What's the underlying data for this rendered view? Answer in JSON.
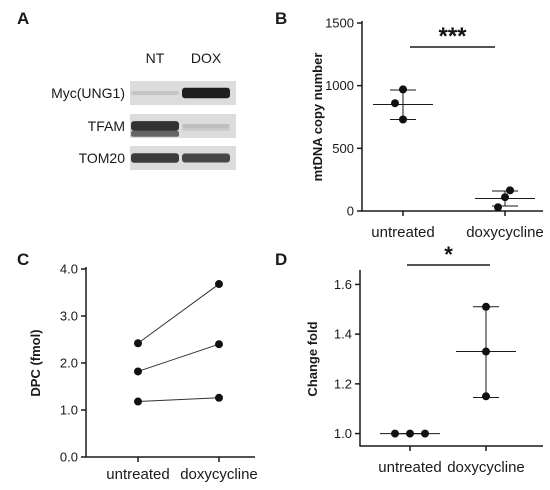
{
  "chart_data": [
    {
      "panel": "A",
      "type": "blot",
      "lanes": [
        "NT",
        "DOX"
      ],
      "bands": [
        {
          "label": "Myc(UNG1)",
          "intensity": [
            0.12,
            0.95
          ]
        },
        {
          "label": "TFAM",
          "intensity": [
            0.85,
            0.15
          ]
        },
        {
          "label": "TOM20",
          "intensity": [
            0.8,
            0.75
          ]
        }
      ]
    },
    {
      "panel": "B",
      "type": "scatter",
      "ylabel": "mtDNA copy number",
      "ylim": [
        0,
        1500
      ],
      "yticks": [
        0,
        500,
        1000,
        1500
      ],
      "categories": [
        "untreated",
        "doxycycline"
      ],
      "points": [
        [
          970,
          860,
          730
        ],
        [
          165,
          110,
          30
        ]
      ],
      "mean": [
        850,
        100
      ],
      "err": [
        [
          730,
          965
        ],
        [
          40,
          160
        ]
      ],
      "significance": "***"
    },
    {
      "panel": "C",
      "type": "paired-line",
      "ylabel": "DPC (fmol)",
      "ylim": [
        0,
        4
      ],
      "yticks": [
        "0.0",
        "1.0",
        "2.0",
        "3.0",
        "4.0"
      ],
      "categories": [
        "untreated",
        "doxycycline"
      ],
      "pairs": [
        [
          2.42,
          3.68
        ],
        [
          1.82,
          2.4
        ],
        [
          1.18,
          1.26
        ]
      ]
    },
    {
      "panel": "D",
      "type": "scatter",
      "ylabel": "Change fold",
      "ylim": [
        0.95,
        1.65
      ],
      "yticks": [
        "1.0",
        "1.2",
        "1.4",
        "1.6"
      ],
      "categories": [
        "untreated",
        "doxycycline"
      ],
      "points": [
        [
          1.0,
          1.0,
          1.0
        ],
        [
          1.51,
          1.33,
          1.15
        ]
      ],
      "mean": [
        1.0,
        1.33
      ],
      "err": [
        [
          1.0,
          1.0
        ],
        [
          1.145,
          1.51
        ]
      ],
      "significance": "*"
    }
  ]
}
